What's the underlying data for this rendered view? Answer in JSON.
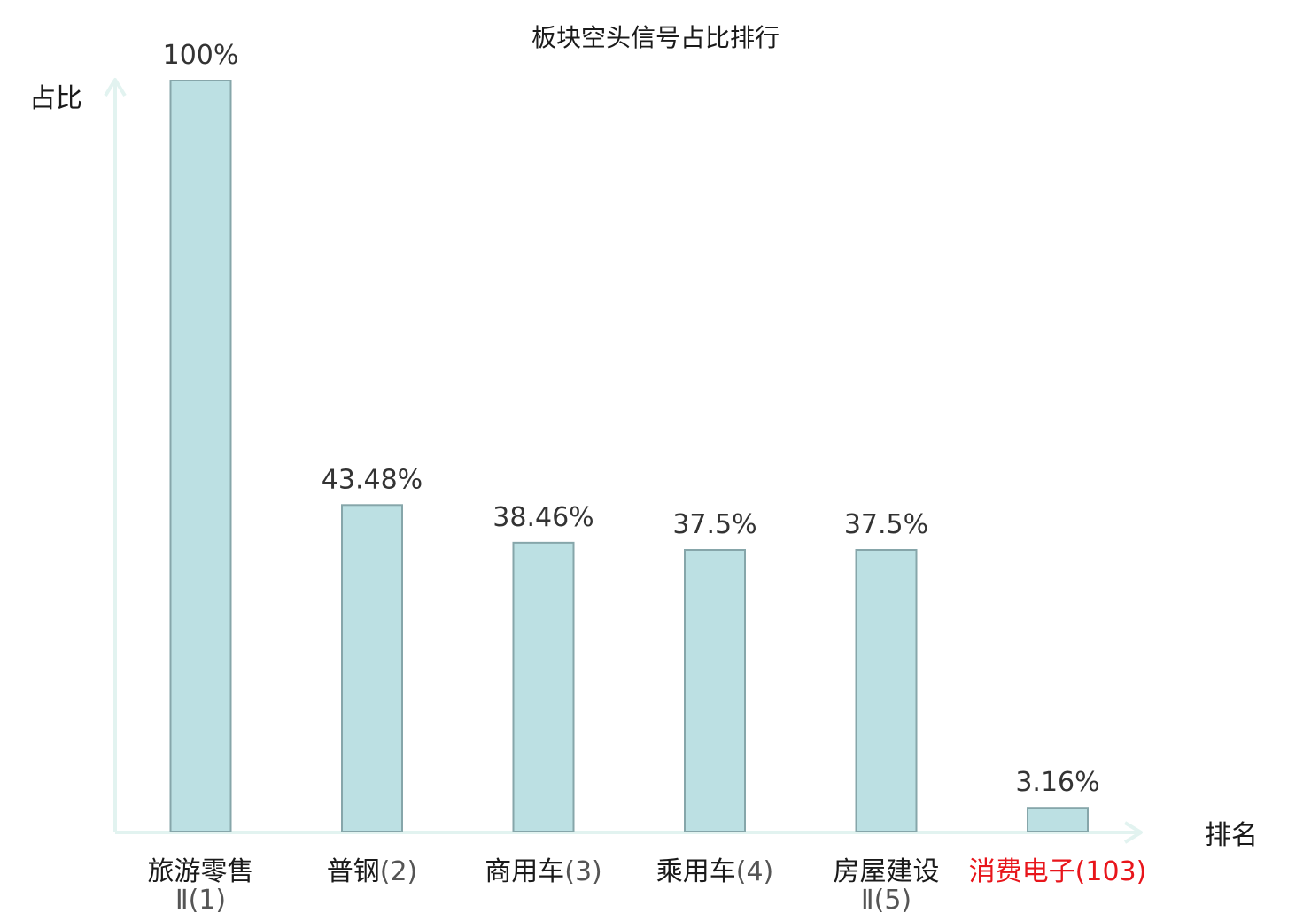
{
  "chart_data": {
    "type": "bar",
    "title": "板块空头信号占比排行",
    "ylabel": "占比",
    "xlabel": "排名",
    "ylim": [
      0,
      100
    ],
    "grid": false,
    "categories": [
      {
        "name_line1": "旅游零售",
        "name_line2": "Ⅱ(1)",
        "name_inline": "",
        "rank_inline": "",
        "value": 100,
        "label": "100%",
        "highlight": false
      },
      {
        "name_line1": "",
        "name_line2": "",
        "name_inline": "普钢",
        "rank_inline": "(2)",
        "value": 43.48,
        "label": "43.48%",
        "highlight": false
      },
      {
        "name_line1": "",
        "name_line2": "",
        "name_inline": "商用车",
        "rank_inline": "(3)",
        "value": 38.46,
        "label": "38.46%",
        "highlight": false
      },
      {
        "name_line1": "",
        "name_line2": "",
        "name_inline": "乘用车",
        "rank_inline": "(4)",
        "value": 37.5,
        "label": "37.5%",
        "highlight": false
      },
      {
        "name_line1": "房屋建设",
        "name_line2": "Ⅱ(5)",
        "name_inline": "",
        "rank_inline": "",
        "value": 37.5,
        "label": "37.5%",
        "highlight": false
      },
      {
        "name_line1": "",
        "name_line2": "",
        "name_inline": "消费电子",
        "rank_inline": "(103)",
        "value": 3.16,
        "label": "3.16%",
        "highlight": true
      }
    ],
    "colors": {
      "bar_fill": "#bce0e3",
      "bar_stroke": "#86a6aa",
      "axis": "#e2f3f0",
      "highlight_text": "#e8151b"
    }
  }
}
